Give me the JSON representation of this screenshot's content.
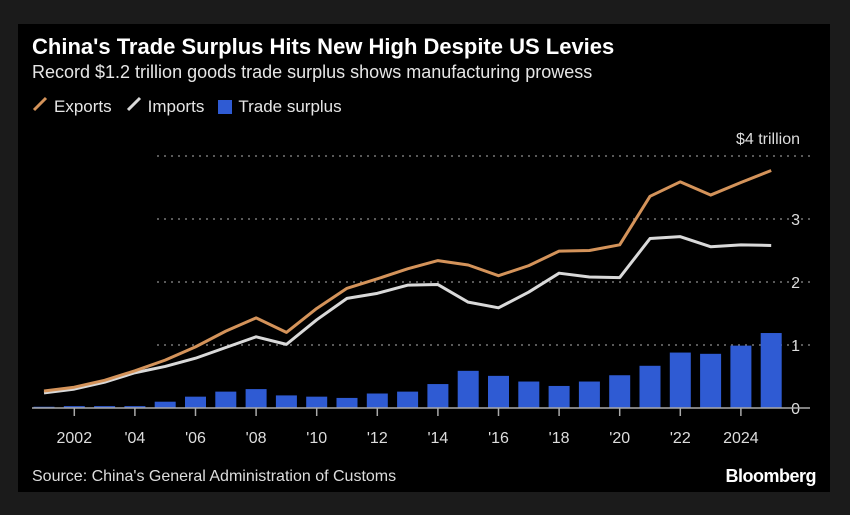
{
  "header": {
    "title": "China's Trade Surplus Hits New High Despite US Levies",
    "subtitle": "Record $1.2 trillion goods trade surplus shows manufacturing prowess"
  },
  "footer": {
    "source": "Source: China's General Administration of Customs",
    "brand": "Bloomberg"
  },
  "chart_data": {
    "type": "bar+line",
    "x": [
      2001,
      2002,
      2003,
      2004,
      2005,
      2006,
      2007,
      2008,
      2009,
      2010,
      2011,
      2012,
      2013,
      2014,
      2015,
      2016,
      2017,
      2018,
      2019,
      2020,
      2021,
      2022,
      2023,
      2024,
      2025
    ],
    "x_tick_labels": [
      {
        "year": 2002,
        "label": "2002"
      },
      {
        "year": 2004,
        "label": "'04"
      },
      {
        "year": 2006,
        "label": "'06"
      },
      {
        "year": 2008,
        "label": "'08"
      },
      {
        "year": 2010,
        "label": "'10"
      },
      {
        "year": 2012,
        "label": "'12"
      },
      {
        "year": 2014,
        "label": "'14"
      },
      {
        "year": 2016,
        "label": "'16"
      },
      {
        "year": 2018,
        "label": "'18"
      },
      {
        "year": 2020,
        "label": "'20"
      },
      {
        "year": 2022,
        "label": "'22"
      },
      {
        "year": 2024,
        "label": "2024"
      }
    ],
    "y_ticks": [
      {
        "value": 0,
        "label": "0"
      },
      {
        "value": 1,
        "label": "1"
      },
      {
        "value": 2,
        "label": "2"
      },
      {
        "value": 3,
        "label": "3"
      },
      {
        "value": 4,
        "label": "$4 trillion"
      }
    ],
    "ylim": [
      0,
      4
    ],
    "grid": true,
    "legend_position": "top-left",
    "series": [
      {
        "name": "Exports",
        "kind": "line",
        "color": "#d4935a",
        "values": [
          0.27,
          0.33,
          0.44,
          0.59,
          0.76,
          0.97,
          1.22,
          1.43,
          1.2,
          1.58,
          1.9,
          2.05,
          2.21,
          2.34,
          2.27,
          2.1,
          2.26,
          2.49,
          2.5,
          2.59,
          3.36,
          3.59,
          3.38,
          3.58,
          3.77
        ]
      },
      {
        "name": "Imports",
        "kind": "line",
        "color": "#d9d9d9",
        "values": [
          0.24,
          0.3,
          0.41,
          0.56,
          0.66,
          0.79,
          0.96,
          1.13,
          1.01,
          1.4,
          1.74,
          1.82,
          1.95,
          1.96,
          1.68,
          1.59,
          1.84,
          2.14,
          2.08,
          2.07,
          2.69,
          2.72,
          2.56,
          2.59,
          2.58
        ]
      },
      {
        "name": "Trade surplus",
        "kind": "bar",
        "color": "#2f5bd3",
        "values": [
          0.02,
          0.03,
          0.03,
          0.03,
          0.1,
          0.18,
          0.26,
          0.3,
          0.2,
          0.18,
          0.16,
          0.23,
          0.26,
          0.38,
          0.59,
          0.51,
          0.42,
          0.35,
          0.42,
          0.52,
          0.67,
          0.88,
          0.86,
          0.99,
          1.19
        ]
      }
    ]
  }
}
